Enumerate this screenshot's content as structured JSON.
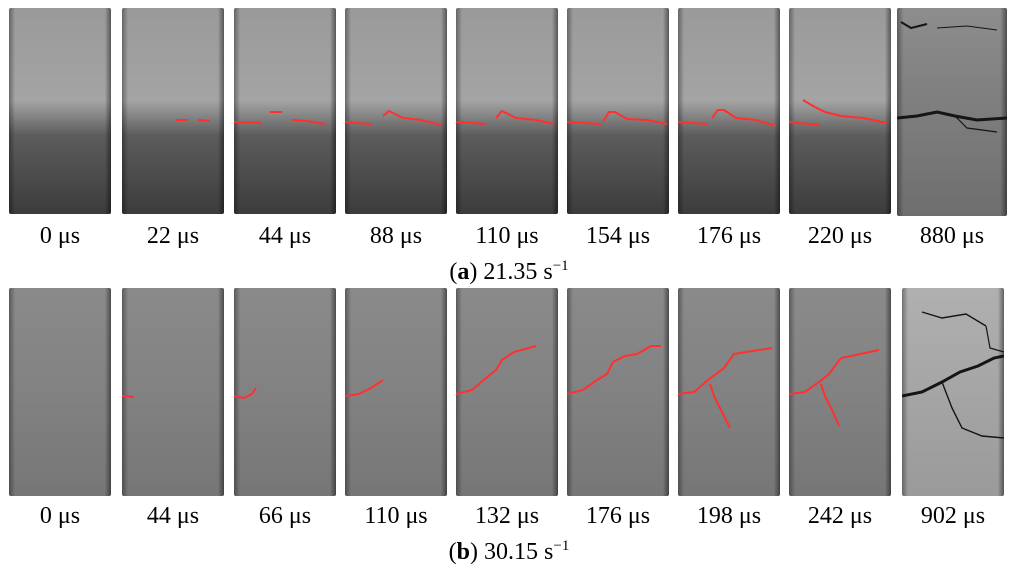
{
  "panel_a": {
    "caption_letter": "a",
    "caption_rate": "21.35 s",
    "caption_exp": "−1",
    "frames": [
      {
        "time": "0 μs"
      },
      {
        "time": "22 μs"
      },
      {
        "time": "44 μs"
      },
      {
        "time": "88 μs"
      },
      {
        "time": "110 μs"
      },
      {
        "time": "154 μs"
      },
      {
        "time": "176 μs"
      },
      {
        "time": "220 μs"
      },
      {
        "time": "880 μs"
      }
    ]
  },
  "panel_b": {
    "caption_letter": "b",
    "caption_rate": "30.15 s",
    "caption_exp": "−1",
    "frames": [
      {
        "time": "0 μs"
      },
      {
        "time": "44 μs"
      },
      {
        "time": "66 μs"
      },
      {
        "time": "110 μs"
      },
      {
        "time": "132 μs"
      },
      {
        "time": "176 μs"
      },
      {
        "time": "198 μs"
      },
      {
        "time": "242 μs"
      },
      {
        "time": "902 μs"
      }
    ]
  },
  "colors": {
    "crack_trace": "#ff3030",
    "specimen_light": "#a8a8a8",
    "specimen_dark": "#3a3a3a"
  }
}
